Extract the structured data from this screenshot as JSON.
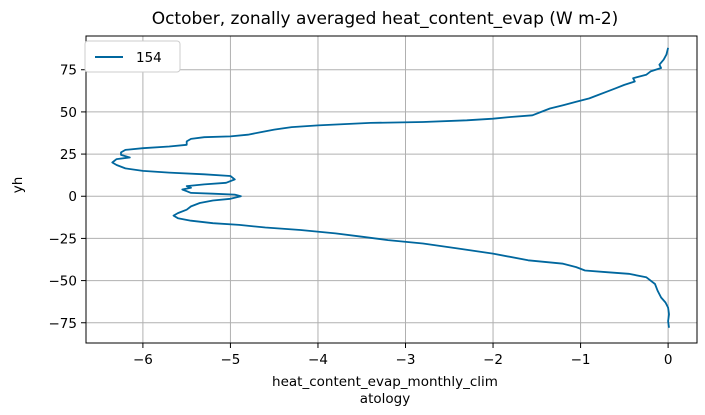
{
  "chart_data": {
    "type": "line",
    "title": "October, zonally averaged heat_content_evap (W m-2)",
    "xlabel_lines": [
      "heat_content_evap_monthly_clim",
      "atology"
    ],
    "ylabel": "yh",
    "xlim": [
      -6.65,
      0.33
    ],
    "ylim": [
      -87,
      95
    ],
    "xticks": [
      -6,
      -5,
      -4,
      -3,
      -2,
      -1,
      0
    ],
    "xtick_labels": [
      "−6",
      "−5",
      "−4",
      "−3",
      "−2",
      "−1",
      "0"
    ],
    "yticks": [
      -75,
      -50,
      -25,
      0,
      25,
      50,
      75
    ],
    "ytick_labels": [
      "−75",
      "−50",
      "−25",
      "0",
      "25",
      "50",
      "75"
    ],
    "grid": true,
    "legend_position": "top-left",
    "series": [
      {
        "name": "154",
        "color": "#00679e",
        "points": [
          [
            0.0,
            88
          ],
          [
            -0.02,
            84
          ],
          [
            -0.05,
            81
          ],
          [
            -0.1,
            78
          ],
          [
            -0.08,
            76
          ],
          [
            -0.2,
            74
          ],
          [
            -0.25,
            72
          ],
          [
            -0.4,
            70
          ],
          [
            -0.38,
            68
          ],
          [
            -0.5,
            66
          ],
          [
            -0.6,
            64
          ],
          [
            -0.7,
            62
          ],
          [
            -0.8,
            60
          ],
          [
            -0.9,
            58
          ],
          [
            -1.05,
            56
          ],
          [
            -1.2,
            54
          ],
          [
            -1.35,
            52
          ],
          [
            -1.45,
            50
          ],
          [
            -1.55,
            48
          ],
          [
            -1.8,
            47
          ],
          [
            -2.0,
            46
          ],
          [
            -2.3,
            45
          ],
          [
            -2.8,
            44
          ],
          [
            -3.4,
            43.5
          ],
          [
            -4.0,
            42
          ],
          [
            -4.3,
            41
          ],
          [
            -4.5,
            39.5
          ],
          [
            -4.65,
            38
          ],
          [
            -4.8,
            36.5
          ],
          [
            -5.0,
            35.5
          ],
          [
            -5.3,
            35
          ],
          [
            -5.45,
            34
          ],
          [
            -5.5,
            32.5
          ],
          [
            -5.5,
            30.5
          ],
          [
            -5.7,
            29.5
          ],
          [
            -6.0,
            28.5
          ],
          [
            -6.2,
            27.5
          ],
          [
            -6.25,
            26
          ],
          [
            -6.25,
            24.5
          ],
          [
            -6.15,
            23
          ],
          [
            -6.3,
            22
          ],
          [
            -6.35,
            20
          ],
          [
            -6.3,
            18.5
          ],
          [
            -6.2,
            16.5
          ],
          [
            -6.0,
            15
          ],
          [
            -5.7,
            14
          ],
          [
            -5.3,
            13
          ],
          [
            -5.0,
            12
          ],
          [
            -4.95,
            10
          ],
          [
            -5.05,
            8
          ],
          [
            -5.3,
            7
          ],
          [
            -5.5,
            6
          ],
          [
            -5.45,
            5
          ],
          [
            -5.55,
            4
          ],
          [
            -5.5,
            3
          ],
          [
            -5.45,
            2
          ],
          [
            -5.2,
            1.5
          ],
          [
            -4.95,
            1
          ],
          [
            -4.88,
            0
          ],
          [
            -5.0,
            -1.5
          ],
          [
            -5.2,
            -2.5
          ],
          [
            -5.35,
            -4
          ],
          [
            -5.45,
            -6
          ],
          [
            -5.5,
            -8
          ],
          [
            -5.6,
            -10
          ],
          [
            -5.65,
            -11.5
          ],
          [
            -5.6,
            -13
          ],
          [
            -5.45,
            -14.5
          ],
          [
            -5.2,
            -16
          ],
          [
            -4.9,
            -17
          ],
          [
            -4.6,
            -18.5
          ],
          [
            -4.2,
            -20
          ],
          [
            -3.8,
            -22
          ],
          [
            -3.5,
            -24
          ],
          [
            -3.2,
            -26
          ],
          [
            -2.8,
            -28
          ],
          [
            -2.4,
            -31
          ],
          [
            -2.0,
            -34
          ],
          [
            -1.6,
            -38
          ],
          [
            -1.2,
            -40
          ],
          [
            -1.05,
            -42
          ],
          [
            -0.95,
            -44
          ],
          [
            -0.7,
            -45
          ],
          [
            -0.45,
            -46
          ],
          [
            -0.25,
            -48
          ],
          [
            -0.15,
            -52
          ],
          [
            -0.12,
            -56
          ],
          [
            -0.08,
            -60
          ],
          [
            -0.03,
            -63
          ],
          [
            0.0,
            -66
          ],
          [
            0.01,
            -70
          ],
          [
            0.0,
            -74
          ],
          [
            0.01,
            -78
          ]
        ]
      }
    ]
  }
}
